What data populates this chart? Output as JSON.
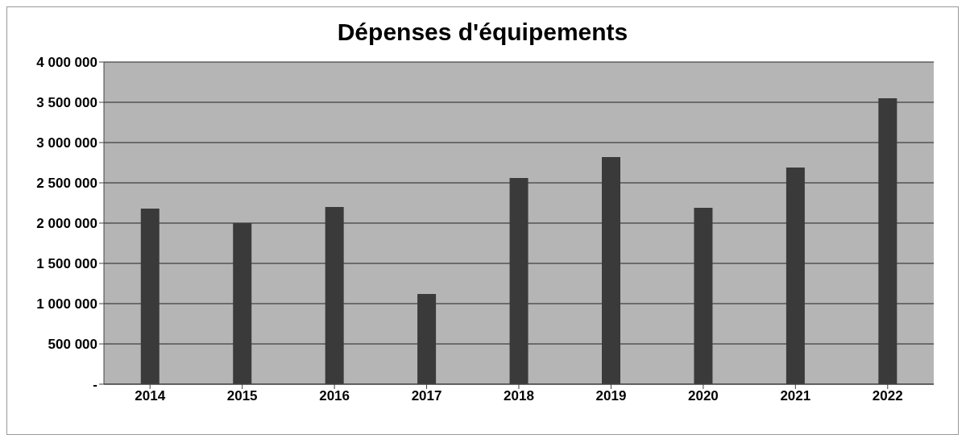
{
  "chart_data": {
    "type": "bar",
    "title": "Dépenses d'équipements",
    "categories": [
      "2014",
      "2015",
      "2016",
      "2017",
      "2018",
      "2019",
      "2020",
      "2021",
      "2022"
    ],
    "values": [
      2180000,
      2000000,
      2200000,
      1120000,
      2560000,
      2820000,
      2190000,
      2690000,
      3550000
    ],
    "color": "#3a3a3a",
    "ylim": [
      0,
      4000000
    ],
    "yticks": [
      {
        "value": 0,
        "label": "-"
      },
      {
        "value": 500000,
        "label": "500 000"
      },
      {
        "value": 1000000,
        "label": "1 000 000"
      },
      {
        "value": 1500000,
        "label": "1 500 000"
      },
      {
        "value": 2000000,
        "label": "2 000 000"
      },
      {
        "value": 2500000,
        "label": "2 500 000"
      },
      {
        "value": 3000000,
        "label": "3 000 000"
      },
      {
        "value": 3500000,
        "label": "3 500 000"
      },
      {
        "value": 4000000,
        "label": "4 000 000"
      }
    ],
    "grid": "y"
  }
}
